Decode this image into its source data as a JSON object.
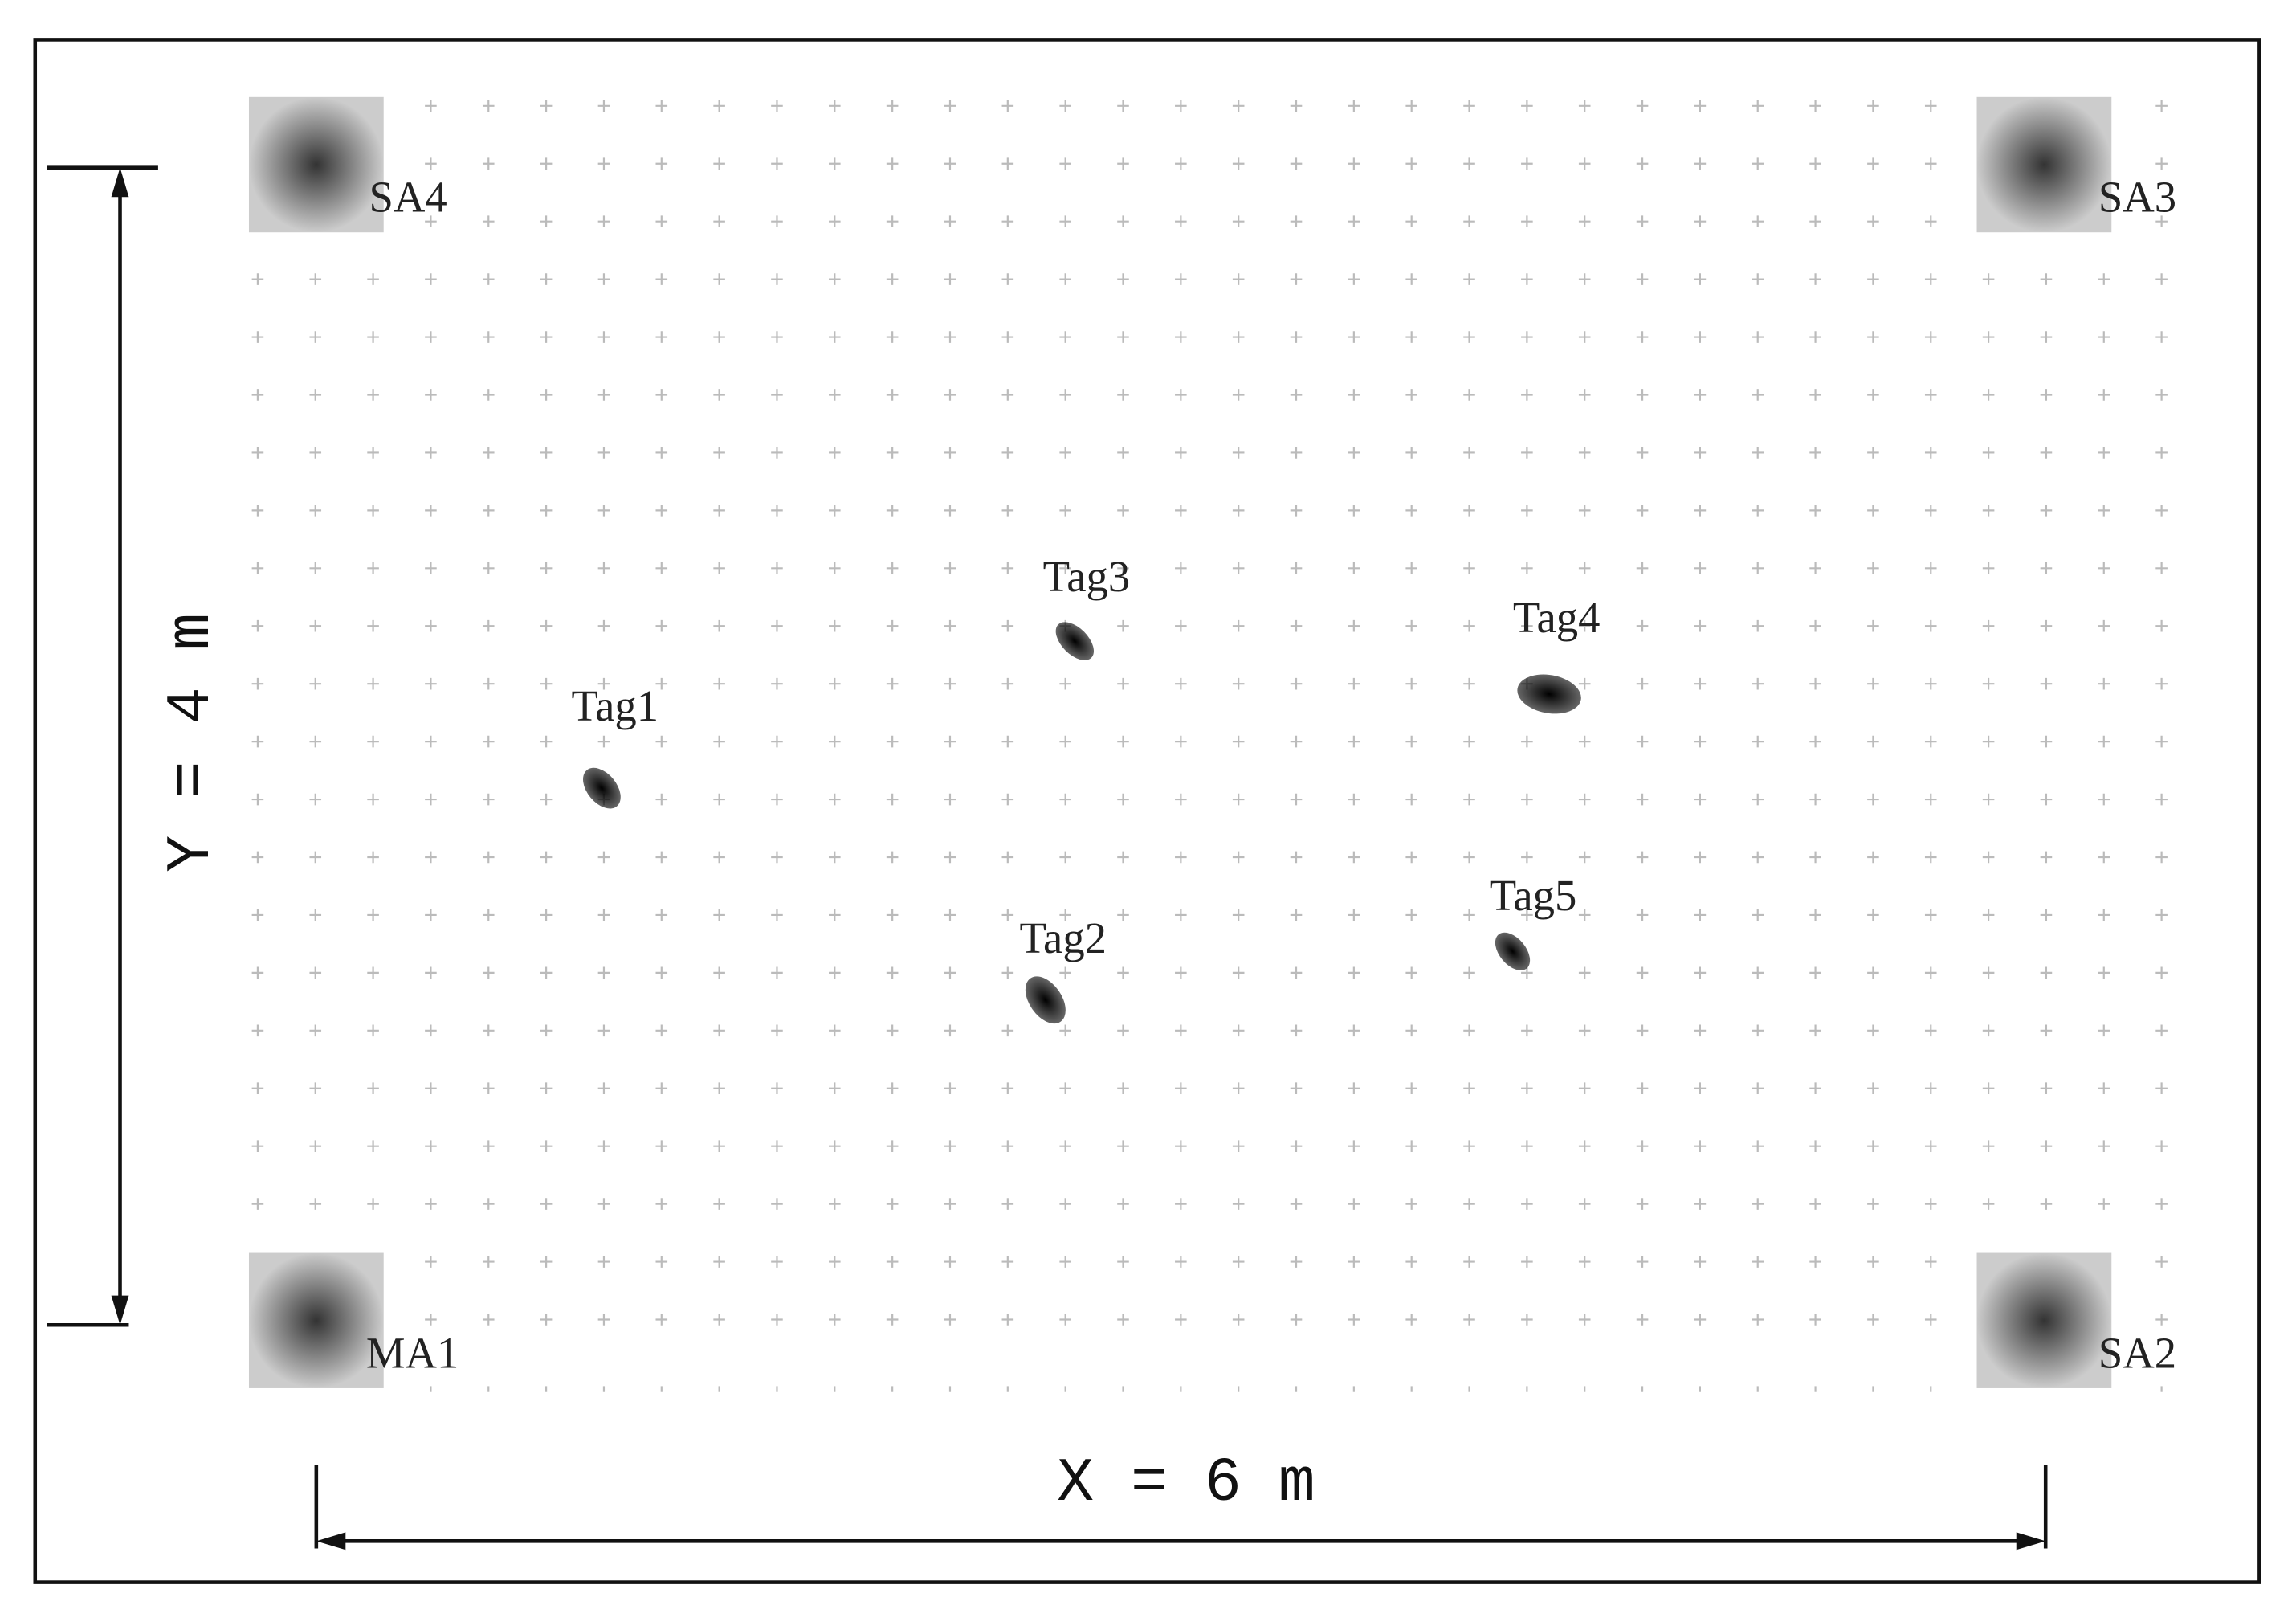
{
  "anchors": [
    {
      "label": "SA4"
    },
    {
      "label": "SA3"
    },
    {
      "label": "MA1"
    },
    {
      "label": "SA2"
    }
  ],
  "tags": [
    {
      "label": "Tag1"
    },
    {
      "label": "Tag2"
    },
    {
      "label": "Tag3"
    },
    {
      "label": "Tag4"
    },
    {
      "label": "Tag5"
    }
  ],
  "dimensions": {
    "y_label": "Y = 4 m",
    "x_label": "X = 6 m"
  }
}
